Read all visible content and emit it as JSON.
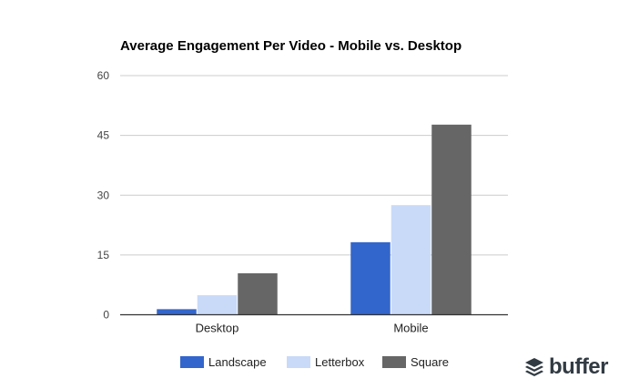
{
  "chart_data": {
    "type": "bar",
    "title": "Average Engagement Per Video - Mobile vs. Desktop",
    "categories": [
      "Desktop",
      "Mobile"
    ],
    "series": [
      {
        "name": "Landscape",
        "color": "#3366cc",
        "values": [
          1.4,
          18.2
        ]
      },
      {
        "name": "Letterbox",
        "color": "#c9daf8",
        "values": [
          4.9,
          27.5
        ]
      },
      {
        "name": "Square",
        "color": "#666666",
        "values": [
          10.4,
          47.7
        ]
      }
    ],
    "yticks": [
      0,
      15,
      30,
      45,
      60
    ],
    "ylim": [
      0,
      60
    ],
    "xlabel": "",
    "ylabel": "",
    "grid": true,
    "legend": "bottom"
  },
  "brand": {
    "logo_text": "buffer",
    "icon": "stacked-layers-icon"
  }
}
